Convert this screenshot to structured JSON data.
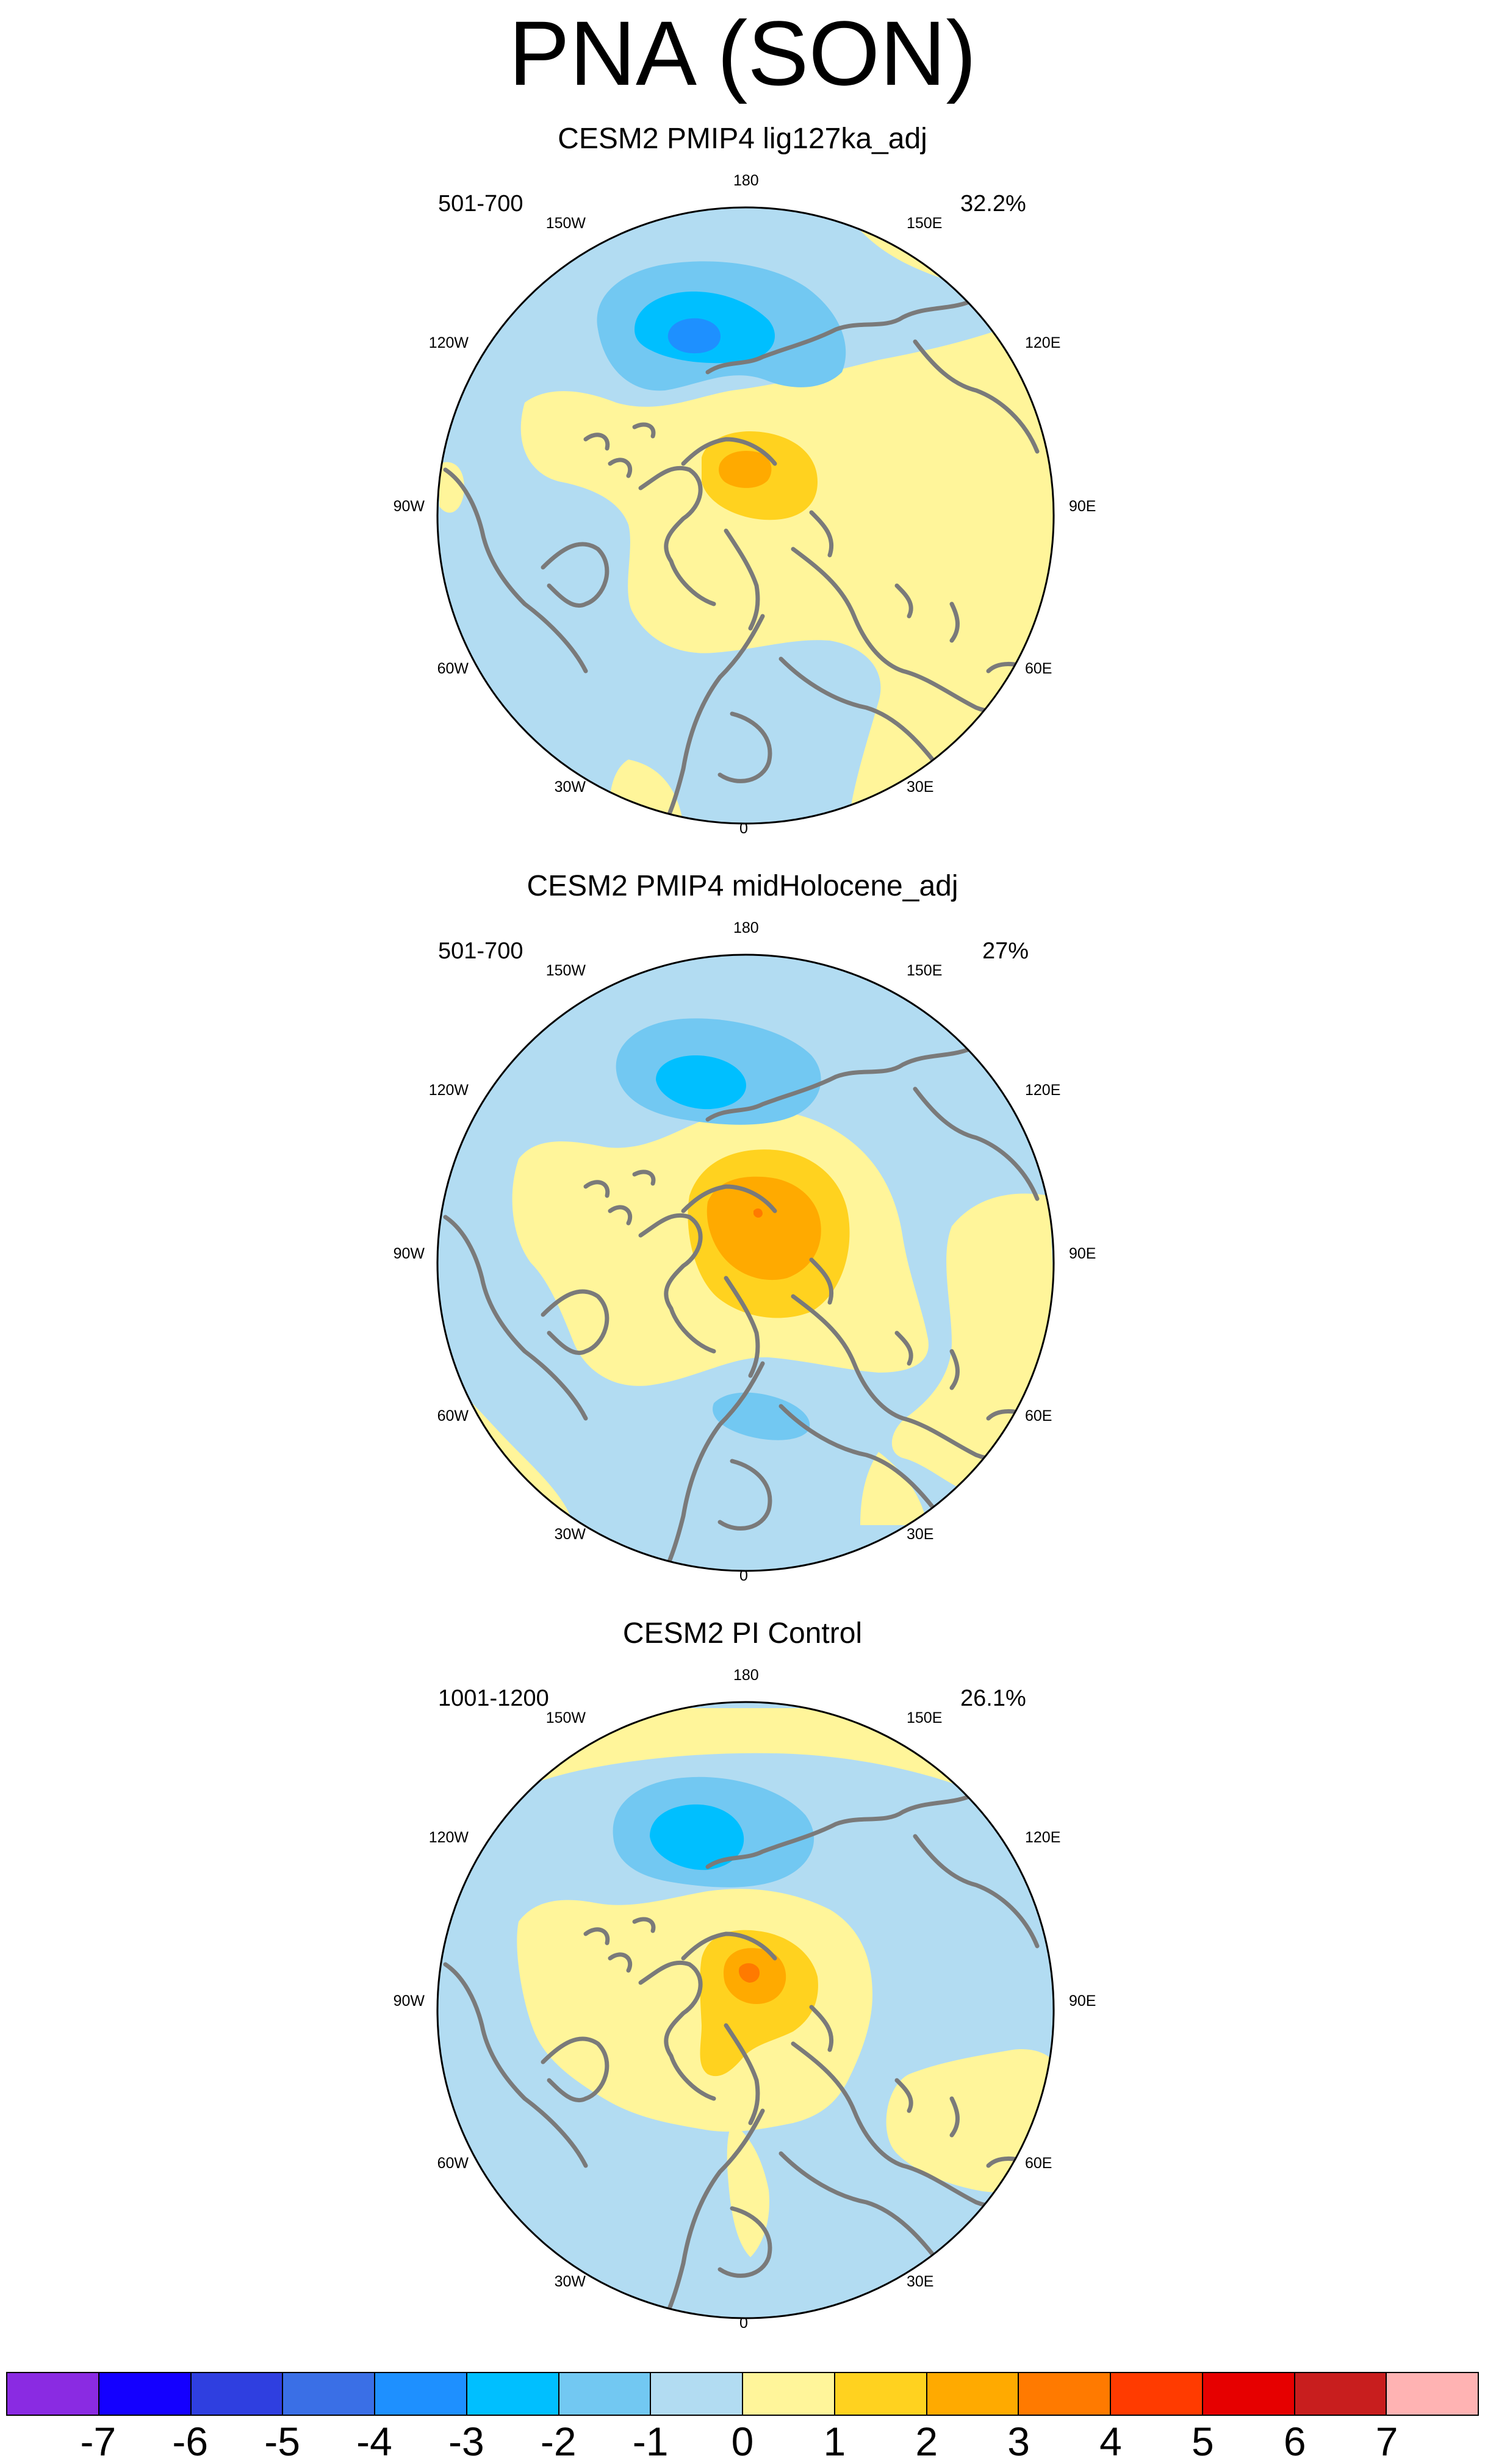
{
  "title": "PNA (SON)",
  "panels": [
    {
      "title": "CESM2 PMIP4 lig127ka_adj",
      "years": "501-700",
      "percent": "32.2%"
    },
    {
      "title": "CESM2 PMIP4 midHolocene_adj",
      "years": "501-700",
      "percent": "27%"
    },
    {
      "title": "CESM2 PI Control",
      "years": "1001-1200",
      "percent": "26.1%"
    }
  ],
  "longitude_labels": {
    "top": "180",
    "bottom": "0",
    "150W": "150W",
    "120W": "120W",
    "90W": "90W",
    "60W": "60W",
    "30W": "30W",
    "150E": "150E",
    "120E": "120E",
    "90E": "90E",
    "60E": "60E",
    "30E": "30E"
  },
  "colorbar": {
    "labels": [
      "-7",
      "-6",
      "-5",
      "-4",
      "-3",
      "-2",
      "-1",
      "0",
      "1",
      "2",
      "3",
      "4",
      "5",
      "6",
      "7"
    ],
    "colors": [
      "#8a2be2",
      "#1400ff",
      "#2f3fe0",
      "#3a6fe6",
      "#1e90ff",
      "#00bfff",
      "#72c8f2",
      "#b2dcf2",
      "#fff59a",
      "#ffd21f",
      "#ffaa00",
      "#ff7a00",
      "#ff3b00",
      "#e60000",
      "#c81e1e",
      "#ffb3b3"
    ]
  },
  "map_colors": {
    "ocean_base": "#b2dcf2",
    "neg1": "#72c8f2",
    "neg2": "#00bfff",
    "neg3": "#1e90ff",
    "pos0": "#fff59a",
    "pos1": "#ffd21f",
    "pos2": "#ffaa00",
    "pos3": "#ff7a00",
    "coast": "#7a7a7a"
  }
}
